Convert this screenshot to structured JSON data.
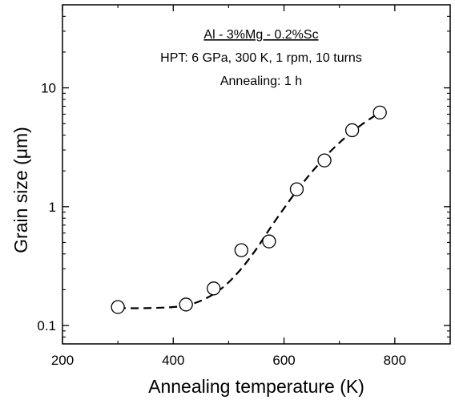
{
  "chart_data": {
    "type": "scatter",
    "xlabel": "Annealing  temperature (K)",
    "ylabel": "Grain size (μm)",
    "xlim": [
      200,
      900
    ],
    "ylim": [
      0.07,
      50
    ],
    "yscale": "log",
    "grid": false,
    "x_ticks": [
      200,
      400,
      600,
      800
    ],
    "x_tick_labels": [
      "200",
      "400",
      "600",
      "800"
    ],
    "y_ticks": [
      0.1,
      1,
      10
    ],
    "y_tick_labels": [
      "0.1",
      "1",
      "10"
    ],
    "annotations": [
      "Al - 3%Mg - 0.2%Sc",
      "HPT: 6 GPa, 300 K, 1 rpm, 10 turns",
      "Annealing: 1 h"
    ],
    "series": [
      {
        "marker": "open-circle",
        "x": [
          300,
          423,
          473,
          523,
          573,
          623,
          673,
          723,
          773
        ],
        "y": [
          0.143,
          0.15,
          0.205,
          0.43,
          0.51,
          1.4,
          2.45,
          4.4,
          6.2
        ]
      }
    ],
    "fit_curve": {
      "style": "dashed",
      "x": [
        300,
        350,
        400,
        430,
        460,
        490,
        520,
        550,
        575,
        600,
        625,
        650,
        680,
        710,
        740,
        775
      ],
      "y": [
        0.14,
        0.14,
        0.143,
        0.15,
        0.17,
        0.21,
        0.29,
        0.44,
        0.66,
        0.97,
        1.4,
        1.95,
        2.8,
        3.8,
        4.9,
        6.3
      ]
    }
  }
}
